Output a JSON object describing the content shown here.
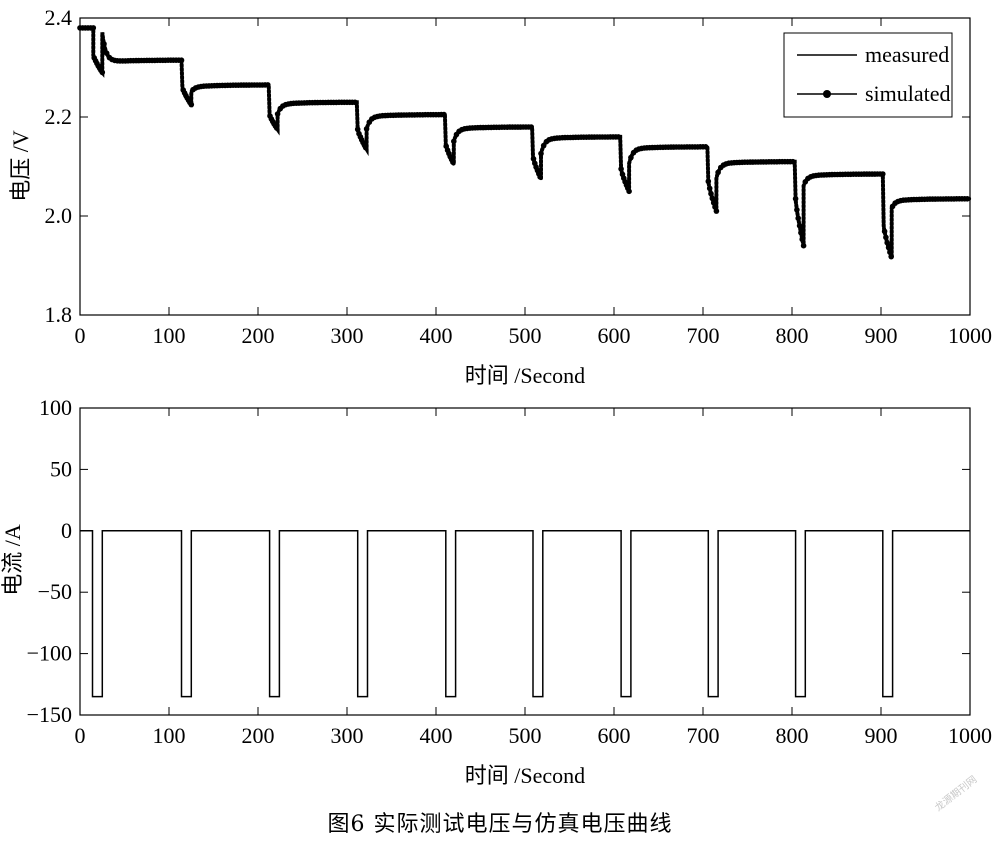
{
  "figure_caption": "图6  实际测试电压与仿真电压曲线",
  "watermark": "龙源期刊网",
  "chart_data": [
    {
      "type": "line",
      "title": "",
      "xlabel": "时间 /Second",
      "ylabel": "电压 /V",
      "xlim": [
        0,
        1000
      ],
      "ylim": [
        1.8,
        2.4
      ],
      "x_ticks": [
        0,
        100,
        200,
        300,
        400,
        500,
        600,
        700,
        800,
        900,
        1000
      ],
      "x_tick_labels": [
        "0",
        "100",
        "200",
        "300",
        "400",
        "500",
        "600",
        "700",
        "800",
        "900",
        "1000"
      ],
      "y_ticks": [
        1.8,
        2.0,
        2.2,
        2.4
      ],
      "y_tick_labels": [
        "1.8",
        "2.0",
        "2.2",
        "2.4"
      ],
      "grid": false,
      "legend": {
        "position": "top-right",
        "entries": [
          "measured",
          "simulated"
        ]
      },
      "pulse_segments": [
        {
          "start": 15,
          "end": 25,
          "rest_start_v": 2.38,
          "drop_from": 2.325,
          "drop_to": 2.29,
          "rest_end_v": 2.315
        },
        {
          "start": 115,
          "end": 125,
          "rest_start_v": 2.26,
          "drop_from": 2.26,
          "drop_to": 2.225,
          "rest_end_v": 2.265
        },
        {
          "start": 213,
          "end": 222,
          "rest_start_v": 2.215,
          "drop_from": 2.205,
          "drop_to": 2.175,
          "rest_end_v": 2.23
        },
        {
          "start": 312,
          "end": 322,
          "rest_start_v": 2.185,
          "drop_from": 2.175,
          "drop_to": 2.135,
          "rest_end_v": 2.205
        },
        {
          "start": 411,
          "end": 420,
          "rest_start_v": 2.16,
          "drop_from": 2.145,
          "drop_to": 2.105,
          "rest_end_v": 2.18
        },
        {
          "start": 509,
          "end": 518,
          "rest_start_v": 2.135,
          "drop_from": 2.12,
          "drop_to": 2.075,
          "rest_end_v": 2.16
        },
        {
          "start": 608,
          "end": 617,
          "rest_start_v": 2.115,
          "drop_from": 2.095,
          "drop_to": 2.05,
          "rest_end_v": 2.14
        },
        {
          "start": 706,
          "end": 715,
          "rest_start_v": 2.085,
          "drop_from": 2.07,
          "drop_to": 2.01,
          "rest_end_v": 2.11
        },
        {
          "start": 804,
          "end": 813,
          "rest_start_v": 2.07,
          "drop_from": 2.035,
          "drop_to": 1.94,
          "rest_end_v": 2.085
        },
        {
          "start": 903,
          "end": 912,
          "rest_start_v": 2.025,
          "drop_from": 1.98,
          "drop_to": 1.915,
          "rest_end_v": 2.035
        }
      ],
      "series": [
        {
          "name": "measured",
          "style": "line"
        },
        {
          "name": "simulated",
          "style": "line-with-dots"
        }
      ]
    },
    {
      "type": "line",
      "title": "",
      "xlabel": "时间 /Second",
      "ylabel": "电流 /A",
      "xlim": [
        0,
        1000
      ],
      "ylim": [
        -150,
        100
      ],
      "x_ticks": [
        0,
        100,
        200,
        300,
        400,
        500,
        600,
        700,
        800,
        900,
        1000
      ],
      "x_tick_labels": [
        "0",
        "100",
        "200",
        "300",
        "400",
        "500",
        "600",
        "700",
        "800",
        "900",
        "1000"
      ],
      "y_ticks": [
        -150,
        -100,
        -50,
        0,
        50,
        100
      ],
      "y_tick_labels": [
        "−150",
        "−100",
        "−50",
        "0",
        "50",
        "100"
      ],
      "grid": false,
      "series": [
        {
          "name": "",
          "x": [
            0,
            14,
            14,
            25,
            25,
            114,
            114,
            125,
            125,
            213,
            213,
            224,
            224,
            312,
            312,
            323,
            323,
            411,
            411,
            422,
            422,
            509,
            509,
            520,
            520,
            608,
            608,
            619,
            619,
            706,
            706,
            717,
            717,
            804,
            804,
            815,
            815,
            902,
            902,
            913,
            913,
            1000
          ],
          "y": [
            0,
            0,
            -135,
            -135,
            0,
            0,
            -135,
            -135,
            0,
            0,
            -135,
            -135,
            0,
            0,
            -135,
            -135,
            0,
            0,
            -135,
            -135,
            0,
            0,
            -135,
            -135,
            0,
            0,
            -135,
            -135,
            0,
            0,
            -135,
            -135,
            0,
            0,
            -135,
            -135,
            0,
            0,
            -135,
            -135,
            0,
            0
          ]
        }
      ]
    }
  ]
}
